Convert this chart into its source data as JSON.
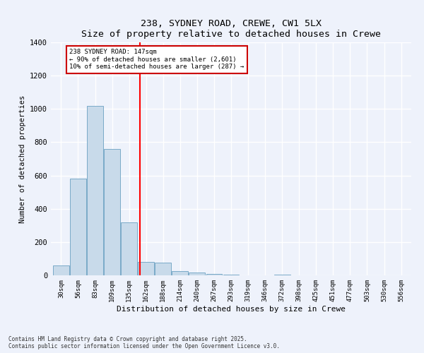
{
  "title1": "238, SYDNEY ROAD, CREWE, CW1 5LX",
  "title2": "Size of property relative to detached houses in Crewe",
  "xlabel": "Distribution of detached houses by size in Crewe",
  "ylabel": "Number of detached properties",
  "bar_color": "#c8daea",
  "bar_edge_color": "#7aaac8",
  "categories": [
    "30sqm",
    "56sqm",
    "83sqm",
    "109sqm",
    "135sqm",
    "162sqm",
    "188sqm",
    "214sqm",
    "240sqm",
    "267sqm",
    "293sqm",
    "319sqm",
    "346sqm",
    "372sqm",
    "398sqm",
    "425sqm",
    "451sqm",
    "477sqm",
    "503sqm",
    "530sqm",
    "556sqm"
  ],
  "values": [
    60,
    580,
    1020,
    760,
    320,
    80,
    75,
    25,
    15,
    10,
    5,
    0,
    0,
    5,
    0,
    0,
    0,
    0,
    0,
    0,
    0
  ],
  "red_line_x": 4.62,
  "annotation_text": "238 SYDNEY ROAD: 147sqm\n← 90% of detached houses are smaller (2,601)\n10% of semi-detached houses are larger (287) →",
  "annotation_box_color": "#ffffff",
  "annotation_border_color": "#cc0000",
  "ylim": [
    0,
    1400
  ],
  "yticks": [
    0,
    200,
    400,
    600,
    800,
    1000,
    1200,
    1400
  ],
  "bg_color": "#eef2fb",
  "grid_color": "#ffffff",
  "footer1": "Contains HM Land Registry data © Crown copyright and database right 2025.",
  "footer2": "Contains public sector information licensed under the Open Government Licence v3.0."
}
